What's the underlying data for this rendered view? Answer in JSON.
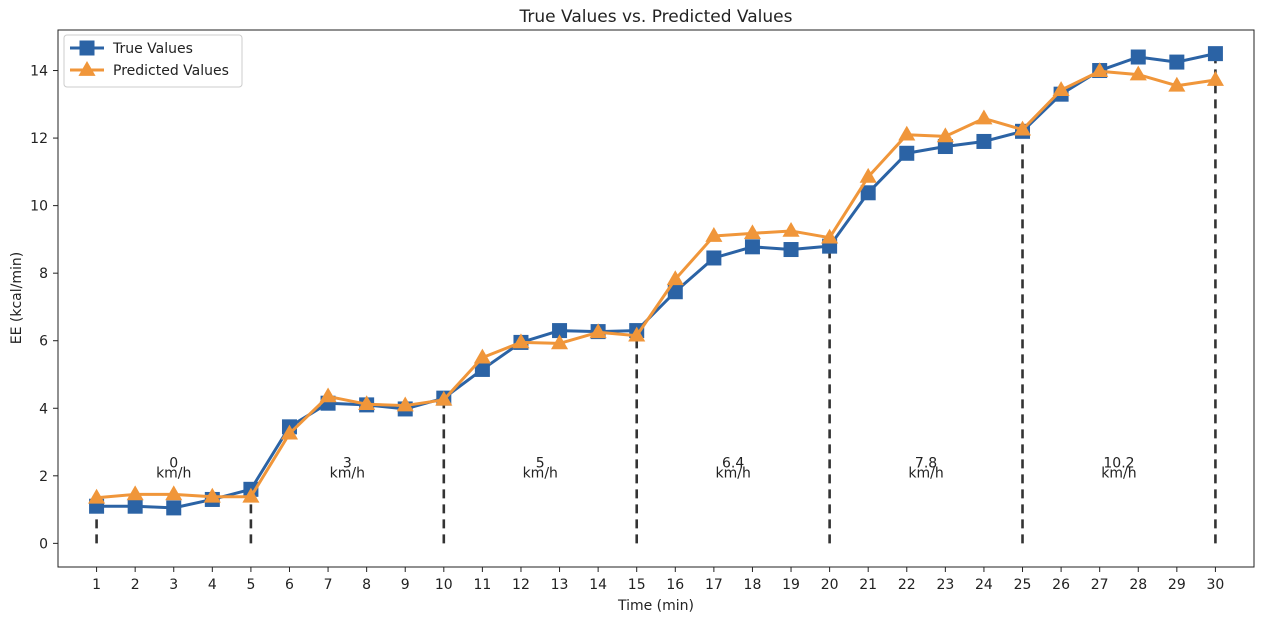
{
  "chart_data": {
    "type": "line",
    "title": "True Values vs. Predicted Values",
    "xlabel": "Time (min)",
    "ylabel": "EE (kcal/min)",
    "x": [
      1,
      2,
      3,
      4,
      5,
      6,
      7,
      8,
      9,
      10,
      11,
      12,
      13,
      14,
      15,
      16,
      17,
      18,
      19,
      20,
      21,
      22,
      23,
      24,
      25,
      26,
      27,
      28,
      29,
      30
    ],
    "xlim": [
      0,
      31
    ],
    "ylim": [
      -0.7,
      15.2
    ],
    "yticks": [
      0,
      2,
      4,
      6,
      8,
      10,
      12,
      14
    ],
    "grid": false,
    "legend_position": "top-left",
    "series": [
      {
        "name": "True Values",
        "marker": "square",
        "color": "#2b63a5",
        "values": [
          1.1,
          1.1,
          1.05,
          1.3,
          1.6,
          3.45,
          4.15,
          4.1,
          3.98,
          4.3,
          5.15,
          5.95,
          6.3,
          6.27,
          6.3,
          7.45,
          8.45,
          8.78,
          8.7,
          8.8,
          10.38,
          11.55,
          11.75,
          11.9,
          12.2,
          13.3,
          14.0,
          14.4,
          14.25,
          14.5
        ]
      },
      {
        "name": "Predicted Values",
        "marker": "triangle",
        "color": "#f0963a",
        "values": [
          1.35,
          1.45,
          1.45,
          1.38,
          1.38,
          3.25,
          4.35,
          4.12,
          4.08,
          4.25,
          5.5,
          5.95,
          5.92,
          6.25,
          6.15,
          7.82,
          9.1,
          9.18,
          9.25,
          9.05,
          10.85,
          12.1,
          12.05,
          12.58,
          12.25,
          13.42,
          13.98,
          13.88,
          13.55,
          13.72
        ]
      }
    ],
    "dividers": {
      "x": [
        1,
        5,
        10,
        15,
        20,
        25,
        30
      ],
      "y_from": 0,
      "to": "true-values"
    },
    "annotations": [
      {
        "x": 3,
        "speed": "0",
        "unit": "km/h"
      },
      {
        "x": 7.5,
        "speed": "3",
        "unit": "km/h"
      },
      {
        "x": 12.5,
        "speed": "5",
        "unit": "km/h"
      },
      {
        "x": 17.5,
        "speed": "6.4",
        "unit": "km/h"
      },
      {
        "x": 22.5,
        "speed": "7.8",
        "unit": "km/h"
      },
      {
        "x": 27.5,
        "speed": "10.2",
        "unit": "km/h"
      }
    ],
    "annotation_y": [
      2.4,
      2.1
    ]
  }
}
